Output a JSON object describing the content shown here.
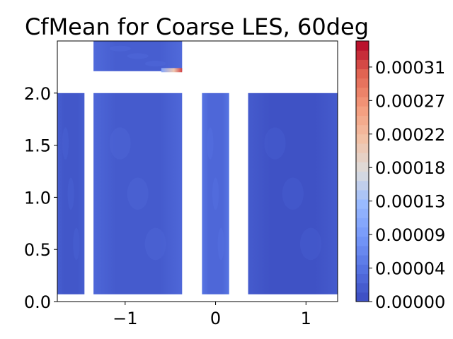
{
  "chart_data": {
    "type": "contour",
    "title": "CfMean for Coarse LES, 60deg",
    "xlabel": "",
    "ylabel": "",
    "xlim": [
      -1.75,
      1.35
    ],
    "ylim": [
      0.0,
      2.5
    ],
    "x_ticks": [
      {
        "value": -1,
        "label": "−1"
      },
      {
        "value": 0,
        "label": "0"
      },
      {
        "value": 1,
        "label": "1"
      }
    ],
    "y_ticks": [
      {
        "value": 0.0,
        "label": "0.0"
      },
      {
        "value": 0.5,
        "label": "0.5"
      },
      {
        "value": 1.0,
        "label": "1.0"
      },
      {
        "value": 1.5,
        "label": "1.5"
      },
      {
        "value": 2.0,
        "label": "2.0"
      }
    ],
    "regions": [
      {
        "name": "strip-1",
        "x": [
          -1.75,
          -1.45
        ],
        "y": [
          0.07,
          2.0
        ],
        "level": 0.035,
        "edge_level": 0.06
      },
      {
        "name": "strip-2",
        "x": [
          -1.35,
          -0.37
        ],
        "y": [
          0.07,
          2.0
        ],
        "level": 0.05,
        "edge_level": 0.09
      },
      {
        "name": "strip-3",
        "x": [
          -0.15,
          0.15
        ],
        "y": [
          0.07,
          2.0
        ],
        "level": 0.09,
        "edge_level": 0.13
      },
      {
        "name": "strip-4",
        "x": [
          0.36,
          1.35
        ],
        "y": [
          0.07,
          2.0
        ],
        "level": 0.02,
        "edge_level": 0.05
      },
      {
        "name": "top-block",
        "x": [
          -1.35,
          -0.37
        ],
        "y": [
          2.21,
          2.5
        ],
        "level": 0.06,
        "edge_level": 0.1
      }
    ],
    "hotspot": {
      "x": [
        -0.6,
        -0.37
      ],
      "y": [
        2.2,
        2.24
      ],
      "level": 0.92
    },
    "colorbar": {
      "cmap": "coolwarm",
      "range": [
        0.0,
        0.00035
      ],
      "n_levels": 28,
      "ticks": [
        {
          "value": 0.0,
          "label": "0.00000"
        },
        {
          "value": 4.5e-05,
          "label": "0.00004"
        },
        {
          "value": 9e-05,
          "label": "0.00009"
        },
        {
          "value": 0.000135,
          "label": "0.00013"
        },
        {
          "value": 0.00018,
          "label": "0.00018"
        },
        {
          "value": 0.000225,
          "label": "0.00022"
        },
        {
          "value": 0.00027,
          "label": "0.00027"
        },
        {
          "value": 0.000315,
          "label": "0.00031"
        }
      ]
    }
  }
}
